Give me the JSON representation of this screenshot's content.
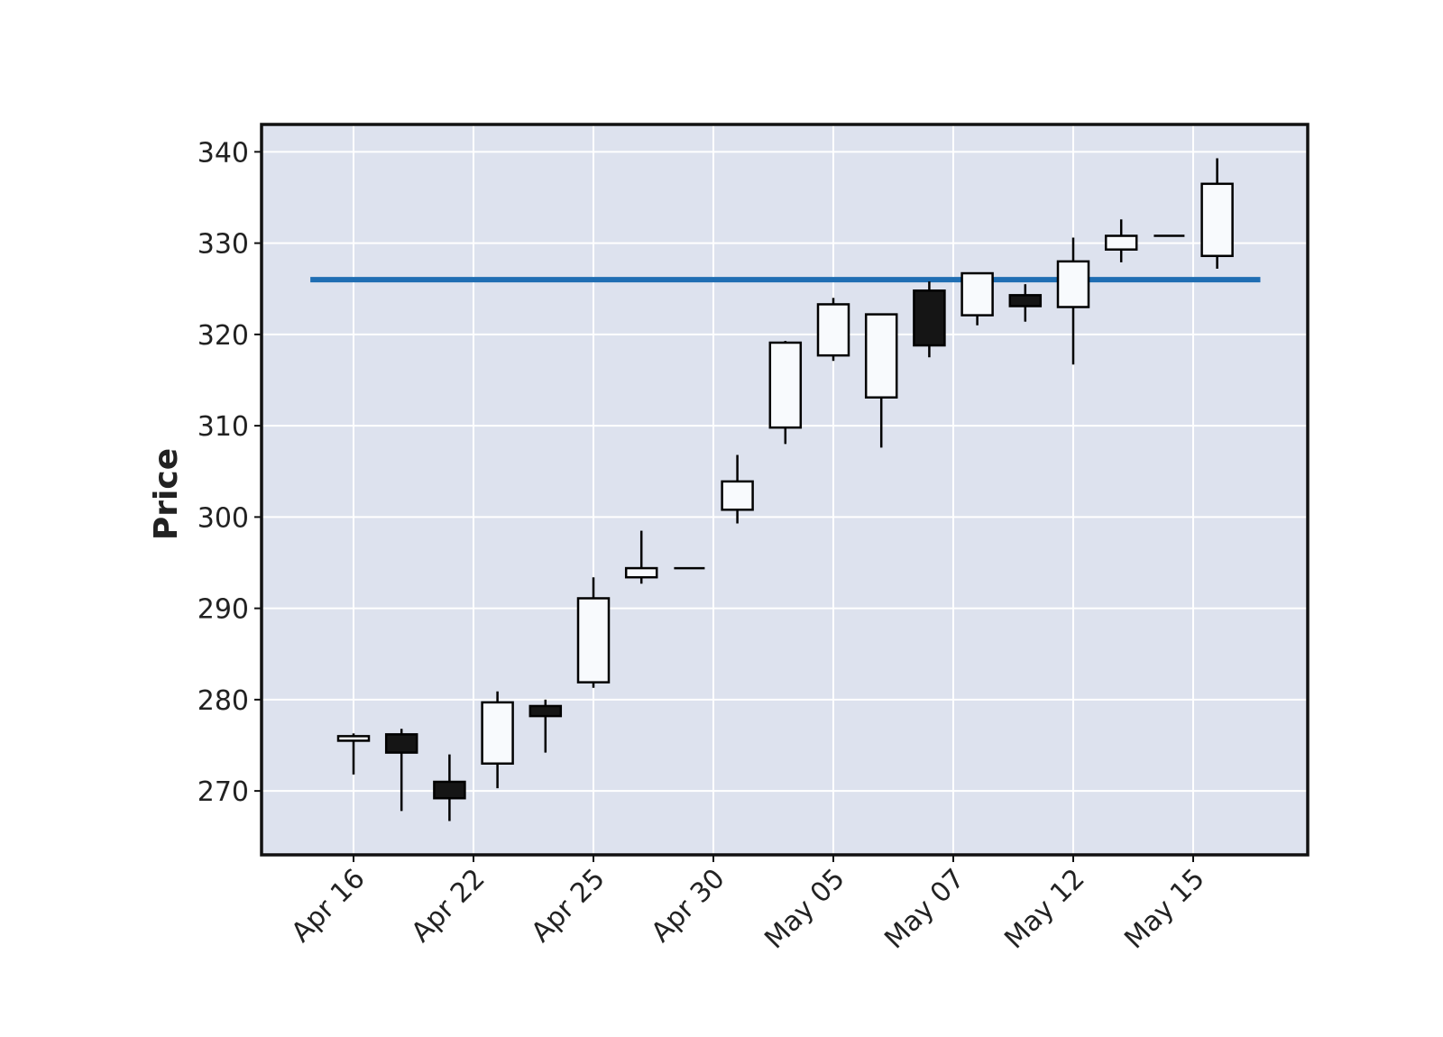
{
  "chart_data": {
    "type": "candlestick",
    "title": "",
    "xlabel": "",
    "ylabel": "Price",
    "ylim": [
      263,
      343
    ],
    "yticks": [
      270,
      280,
      290,
      300,
      310,
      320,
      330,
      340
    ],
    "xtick_labels": [
      "Apr 16",
      "Apr 22",
      "Apr 25",
      "Apr 30",
      "May 05",
      "May 07",
      "May 12",
      "May 15"
    ],
    "xtick_candle_index": [
      0,
      2.5,
      5,
      7.5,
      10,
      12.5,
      15,
      17.5
    ],
    "grid": true,
    "reference_line": {
      "value": 326
    },
    "candles": [
      {
        "open": 275.5,
        "high": 276.3,
        "low": 271.8,
        "close": 276.0
      },
      {
        "open": 276.2,
        "high": 276.8,
        "low": 267.8,
        "close": 274.2
      },
      {
        "open": 271.0,
        "high": 274.0,
        "low": 266.7,
        "close": 269.2
      },
      {
        "open": 273.0,
        "high": 280.9,
        "low": 270.3,
        "close": 279.7
      },
      {
        "open": 279.3,
        "high": 280.0,
        "low": 274.2,
        "close": 278.2
      },
      {
        "open": 281.9,
        "high": 293.4,
        "low": 281.3,
        "close": 291.1
      },
      {
        "open": 293.4,
        "high": 298.5,
        "low": 292.7,
        "close": 294.4
      },
      {
        "open": 294.4,
        "high": 294.4,
        "low": 294.4,
        "close": 294.4
      },
      {
        "open": 300.8,
        "high": 306.8,
        "low": 299.3,
        "close": 303.9
      },
      {
        "open": 309.8,
        "high": 319.3,
        "low": 308.0,
        "close": 319.1
      },
      {
        "open": 317.7,
        "high": 324.0,
        "low": 317.1,
        "close": 323.3
      },
      {
        "open": 313.1,
        "high": 322.2,
        "low": 307.6,
        "close": 322.2
      },
      {
        "open": 324.8,
        "high": 325.8,
        "low": 317.5,
        "close": 318.8
      },
      {
        "open": 322.1,
        "high": 326.7,
        "low": 321.0,
        "close": 326.7
      },
      {
        "open": 324.3,
        "high": 325.5,
        "low": 321.4,
        "close": 323.1
      },
      {
        "open": 323.0,
        "high": 330.6,
        "low": 316.7,
        "close": 328.0
      },
      {
        "open": 329.3,
        "high": 332.6,
        "low": 327.9,
        "close": 330.8
      },
      {
        "open": 330.8,
        "high": 330.8,
        "low": 330.8,
        "close": 330.8
      },
      {
        "open": 328.6,
        "high": 339.3,
        "low": 327.2,
        "close": 336.5
      }
    ],
    "colors": {
      "plot_background": "#dde2ee",
      "up_fill": "#f8fafd",
      "down_fill": "#151515",
      "edge": "#000000",
      "grid": "#ffffff",
      "reference_line": "#1f6eb3"
    }
  }
}
